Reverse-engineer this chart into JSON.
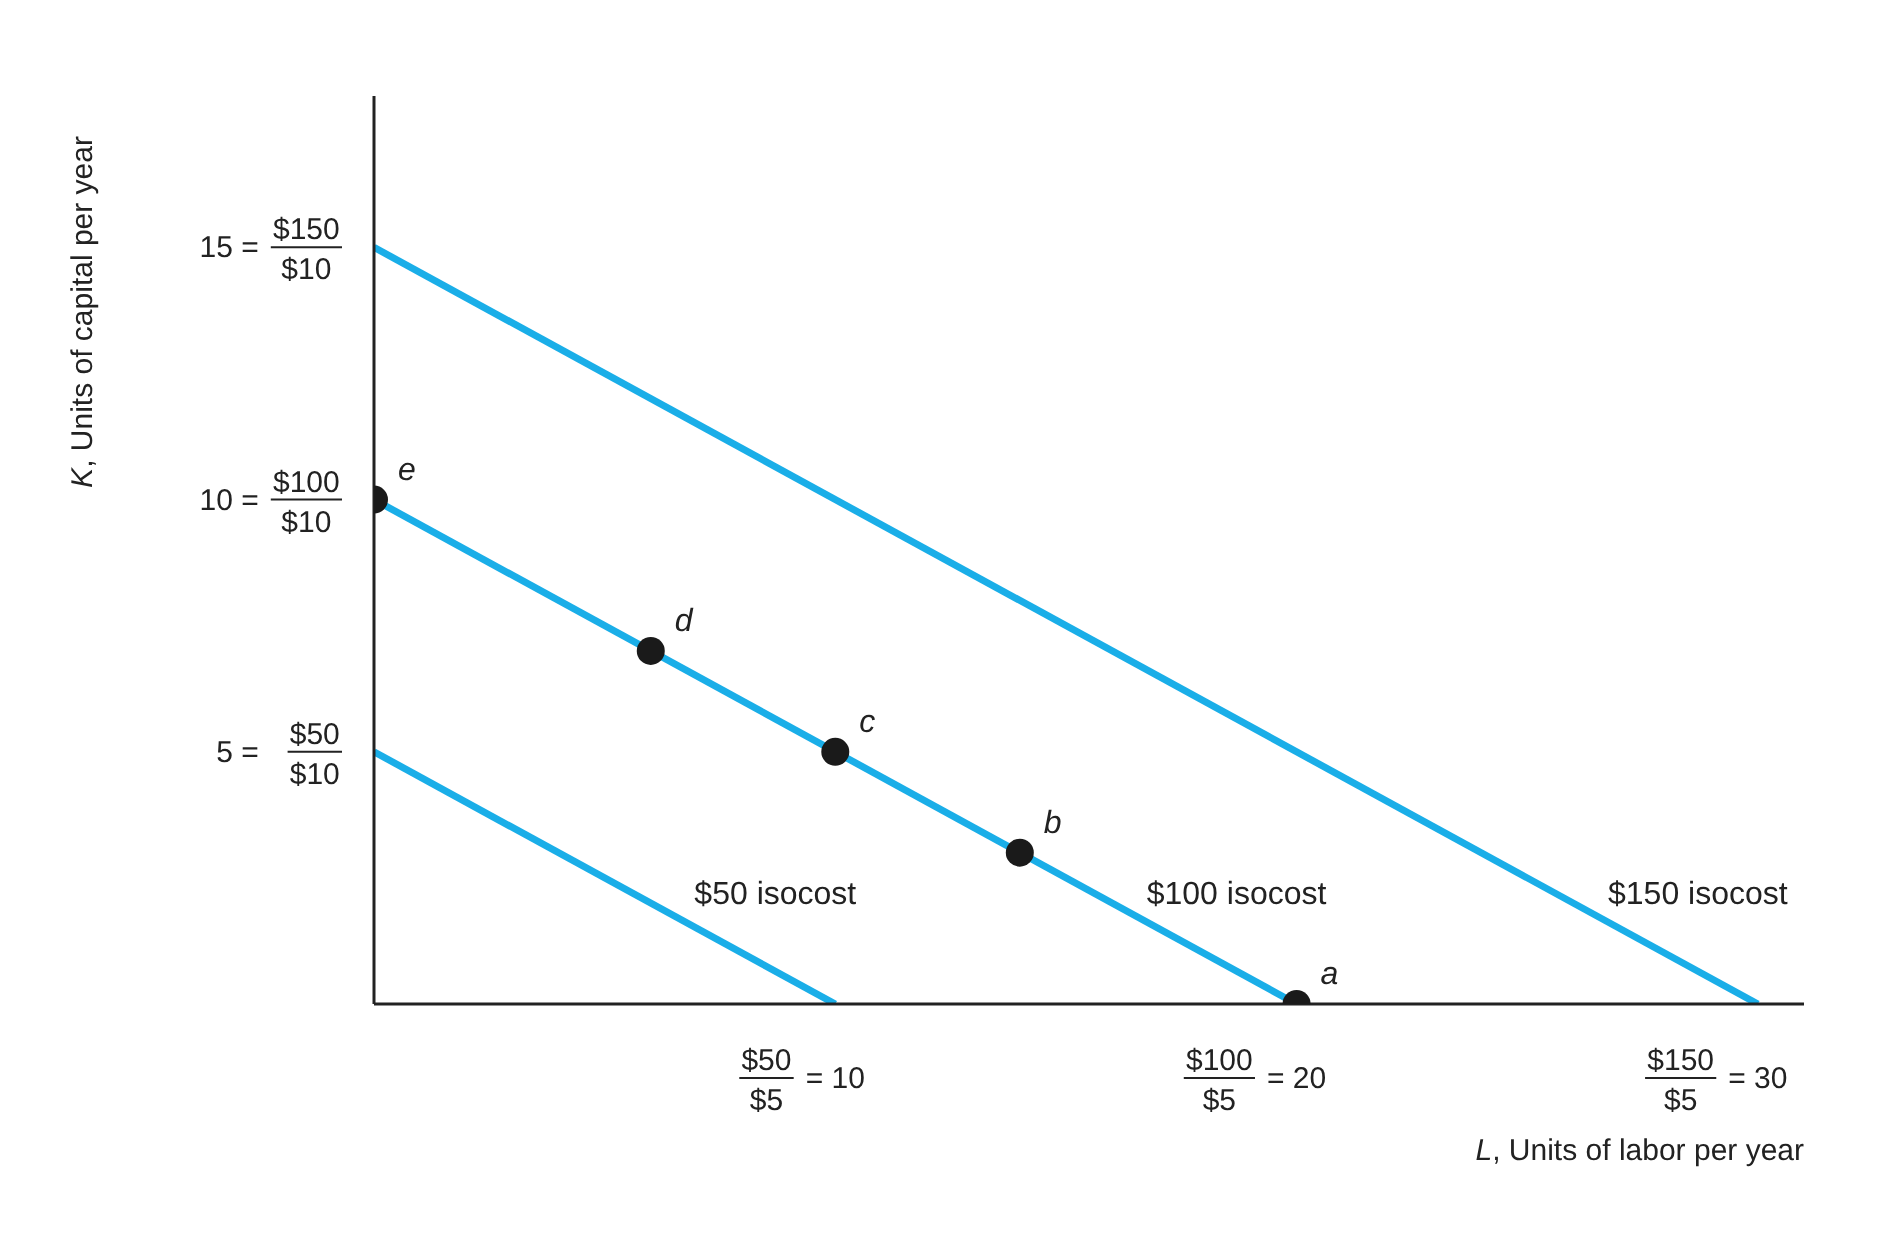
{
  "chart_data": {
    "type": "line",
    "xlabel": "L, Units of labor per year",
    "ylabel": "K, Units of capital per year",
    "xlim": [
      0,
      31
    ],
    "ylim": [
      0,
      18
    ],
    "xticks": [
      {
        "value": 10,
        "label": "= 10"
      },
      {
        "value": 20,
        "label": "= 20"
      },
      {
        "value": 30,
        "label": "= 30"
      }
    ],
    "yticks": [
      {
        "value": 5,
        "label": "5 ="
      },
      {
        "value": 10,
        "label": "10 ="
      },
      {
        "value": 15,
        "label": "15 ="
      }
    ],
    "annotations": [
      "$50/$10",
      "$100/$10",
      "$150/$10",
      "$50/$5",
      "$100/$5",
      "$150/$5"
    ],
    "series": [
      {
        "name": "$50 isocost",
        "color": "#1aaee8",
        "x": [
          0,
          10
        ],
        "values": [
          5,
          0
        ]
      },
      {
        "name": "$100 isocost",
        "color": "#1aaee8",
        "x": [
          0,
          20
        ],
        "values": [
          10,
          0
        ]
      },
      {
        "name": "$150 isocost",
        "color": "#1aaee8",
        "x": [
          0,
          30
        ],
        "values": [
          15,
          0
        ]
      },
      {
        "type": "scatter",
        "color": "#1a1a1a",
        "marker": "circle",
        "x": [
          0,
          6,
          10,
          14,
          20
        ],
        "values": [
          10,
          7,
          5,
          3,
          0
        ],
        "value_labels": [
          "e",
          "d",
          "c",
          "b",
          "a"
        ]
      }
    ]
  }
}
